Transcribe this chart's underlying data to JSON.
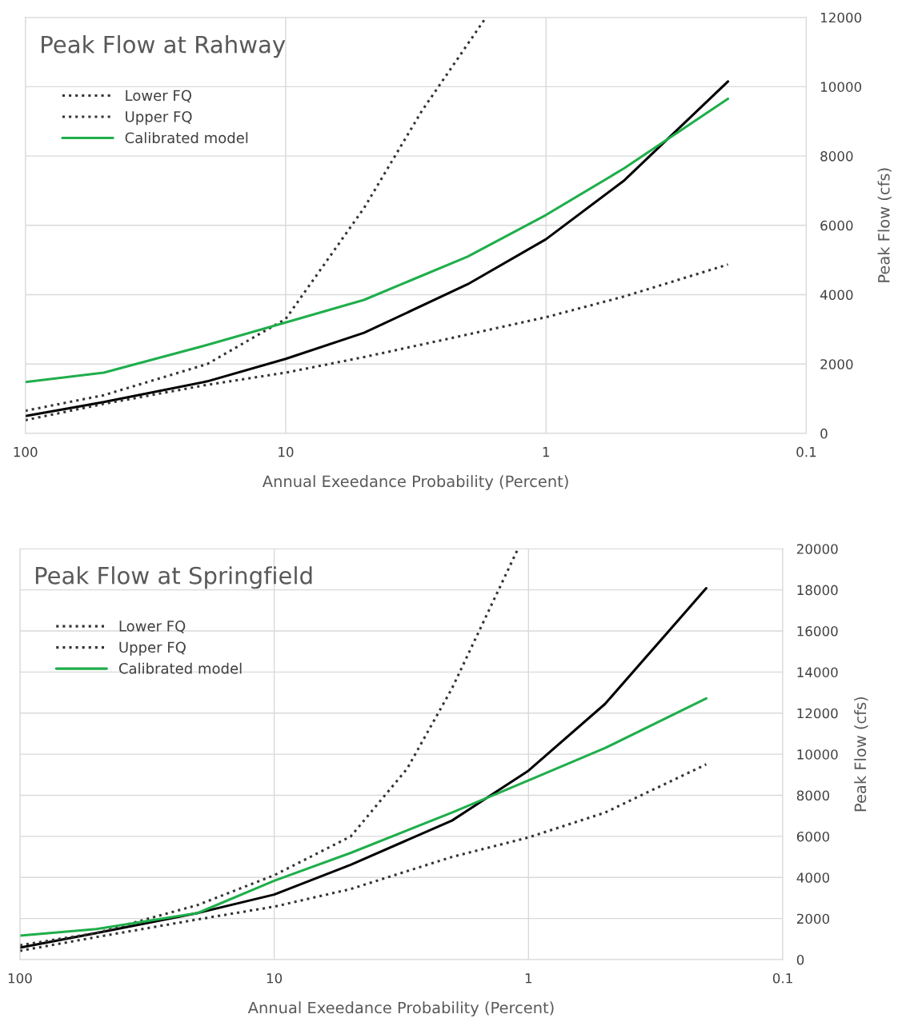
{
  "chart_data": [
    {
      "type": "line",
      "title": "Peak Flow at Rahway",
      "xlabel": "Annual Exeedance Probability (Percent)",
      "ylabel": "Peak Flow (cfs)",
      "log": "x",
      "xlim": [
        100,
        0.1
      ],
      "xticks": [
        100,
        10,
        1,
        0.1
      ],
      "ylim": [
        0,
        12000
      ],
      "yticks": [
        0,
        2000,
        4000,
        6000,
        8000,
        10000,
        12000
      ],
      "grid": true,
      "legend": "top left",
      "x": [
        100,
        50,
        20,
        10,
        5,
        2,
        1,
        0.5,
        0.2
      ],
      "series": [
        {
          "color": "#000000",
          "line_style": "solid",
          "values": [
            500,
            900,
            1500,
            2150,
            2900,
            4300,
            5600,
            7300,
            10150
          ]
        },
        {
          "name": "Lower FQ",
          "color": "#333333",
          "line_style": "dotted",
          "values": [
            380,
            850,
            1400,
            1750,
            2200,
            2850,
            3350,
            3950,
            4870
          ]
        },
        {
          "name": "Upper FQ",
          "color": "#333333",
          "line_style": "dotted",
          "x": [
            100,
            50,
            20,
            10,
            5,
            3,
            1.7
          ],
          "values": [
            650,
            1100,
            2000,
            3300,
            6500,
            9300,
            12000
          ]
        },
        {
          "name": "Calibrated model",
          "color": "#1fae4b",
          "line_style": "solid",
          "values": [
            1480,
            1750,
            2550,
            3200,
            3850,
            5100,
            6300,
            7650,
            9650
          ]
        }
      ]
    },
    {
      "type": "line",
      "title": "Peak Flow at Springfield",
      "xlabel": "Annual Exeedance Probability (Percent)",
      "ylabel": "Peak Flow (cfs)",
      "log": "x",
      "xlim": [
        100,
        0.1
      ],
      "xticks": [
        100,
        10,
        1,
        0.1
      ],
      "ylim": [
        0,
        20000
      ],
      "yticks": [
        0,
        2000,
        4000,
        6000,
        8000,
        10000,
        12000,
        14000,
        16000,
        18000,
        20000
      ],
      "grid": true,
      "legend": "top left",
      "x": [
        100,
        50,
        20,
        10,
        5,
        2,
        1,
        0.5,
        0.2
      ],
      "series": [
        {
          "color": "#000000",
          "line_style": "solid",
          "values": [
            590,
            1300,
            2270,
            3170,
            4620,
            6770,
            9200,
            12450,
            18080
          ]
        },
        {
          "name": "Lower FQ",
          "color": "#333333",
          "line_style": "dotted",
          "values": [
            430,
            1100,
            1960,
            2580,
            3440,
            5000,
            5950,
            7160,
            9510
          ]
        },
        {
          "name": "Upper FQ",
          "color": "#333333",
          "line_style": "dotted",
          "x": [
            100,
            50,
            20,
            10,
            5,
            3,
            2,
            1.1
          ],
          "values": [
            700,
            1300,
            2660,
            4110,
            6000,
            9300,
            13200,
            20000
          ]
        },
        {
          "name": "Calibrated model",
          "color": "#1fae4b",
          "line_style": "solid",
          "values": [
            1170,
            1490,
            2270,
            3840,
            5200,
            7160,
            8730,
            10300,
            12720
          ]
        }
      ]
    }
  ]
}
